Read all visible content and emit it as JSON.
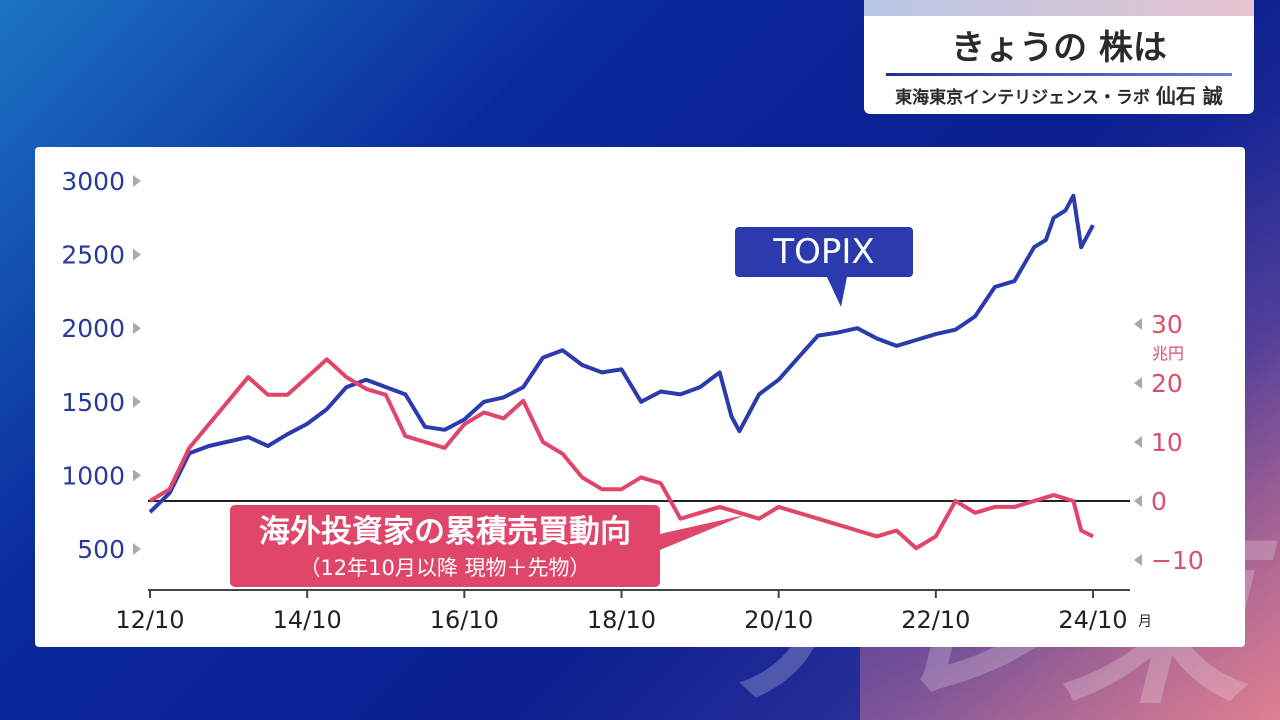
{
  "header": {
    "title": "きょうの 株は",
    "subtitle_org": "東海東京インテリジェンス・ラボ",
    "subtitle_name": "仙石 誠"
  },
  "watermark_text": "テレ東",
  "colors": {
    "topix": "#2b3bae",
    "investors": "#e0456a",
    "label_topix_bg": "#2b3bae",
    "label_investors_bg": "#e0456a"
  },
  "chart_data": {
    "type": "line",
    "x_tick_labels": [
      "12/10",
      "14/10",
      "16/10",
      "18/10",
      "20/10",
      "22/10",
      "24/10"
    ],
    "x_unit": "月",
    "y_left": {
      "ticks": [
        500,
        1000,
        1500,
        2000,
        2500,
        3000
      ],
      "range": [
        250,
        3050
      ]
    },
    "y_right": {
      "ticks": [
        -10,
        0,
        10,
        20,
        30
      ],
      "tick_labels": [
        "−10",
        "0",
        "10",
        "20",
        "30"
      ],
      "unit": "兆円",
      "range": [
        -15,
        37
      ]
    },
    "series": [
      {
        "name": "TOPIX",
        "axis": "left",
        "x": [
          2012.75,
          2013.0,
          2013.25,
          2013.5,
          2013.75,
          2014.0,
          2014.25,
          2014.5,
          2014.75,
          2015.0,
          2015.25,
          2015.5,
          2015.75,
          2016.0,
          2016.25,
          2016.5,
          2016.75,
          2017.0,
          2017.25,
          2017.5,
          2017.75,
          2018.0,
          2018.25,
          2018.5,
          2018.75,
          2019.0,
          2019.25,
          2019.5,
          2019.75,
          2020.0,
          2020.15,
          2020.25,
          2020.5,
          2020.75,
          2021.0,
          2021.25,
          2021.5,
          2021.75,
          2022.0,
          2022.25,
          2022.5,
          2022.75,
          2023.0,
          2023.25,
          2023.5,
          2023.75,
          2024.0,
          2024.15,
          2024.25,
          2024.4,
          2024.5,
          2024.6,
          2024.75
        ],
        "y": [
          750,
          880,
          1150,
          1200,
          1230,
          1260,
          1200,
          1280,
          1350,
          1450,
          1600,
          1650,
          1600,
          1550,
          1330,
          1310,
          1380,
          1500,
          1530,
          1600,
          1800,
          1850,
          1750,
          1700,
          1720,
          1500,
          1570,
          1550,
          1600,
          1700,
          1400,
          1300,
          1550,
          1650,
          1800,
          1950,
          1970,
          2000,
          1930,
          1880,
          1920,
          1960,
          1990,
          2080,
          2280,
          2320,
          2550,
          2600,
          2750,
          2800,
          2900,
          2550,
          2700
        ]
      },
      {
        "name": "海外投資家の累積売買動向",
        "axis": "right",
        "x": [
          2012.75,
          2013.0,
          2013.25,
          2013.5,
          2013.75,
          2014.0,
          2014.25,
          2014.5,
          2014.75,
          2015.0,
          2015.25,
          2015.5,
          2015.75,
          2016.0,
          2016.25,
          2016.5,
          2016.75,
          2017.0,
          2017.25,
          2017.5,
          2017.75,
          2018.0,
          2018.25,
          2018.5,
          2018.75,
          2019.0,
          2019.25,
          2019.5,
          2019.75,
          2020.0,
          2020.25,
          2020.5,
          2020.75,
          2021.0,
          2021.25,
          2021.5,
          2021.75,
          2022.0,
          2022.25,
          2022.5,
          2022.75,
          2023.0,
          2023.25,
          2023.5,
          2023.75,
          2024.0,
          2024.25,
          2024.5,
          2024.6,
          2024.75
        ],
        "y": [
          0,
          2,
          9,
          13,
          17,
          21,
          18,
          18,
          21,
          24,
          21,
          19,
          18,
          11,
          10,
          9,
          13,
          15,
          14,
          17,
          10,
          8,
          4,
          2,
          2,
          4,
          3,
          -3,
          -2,
          -1,
          -2,
          -3,
          -1,
          -2,
          -3,
          -4,
          -5,
          -6,
          -5,
          -8,
          -6,
          0,
          -2,
          -1,
          -1,
          0,
          1,
          0,
          -5,
          -6
        ]
      }
    ],
    "labels": {
      "topix": "TOPIX",
      "investors_line1": "海外投資家の累積売買動向",
      "investors_line2": "（12年10月以降 現物＋先物）"
    }
  }
}
